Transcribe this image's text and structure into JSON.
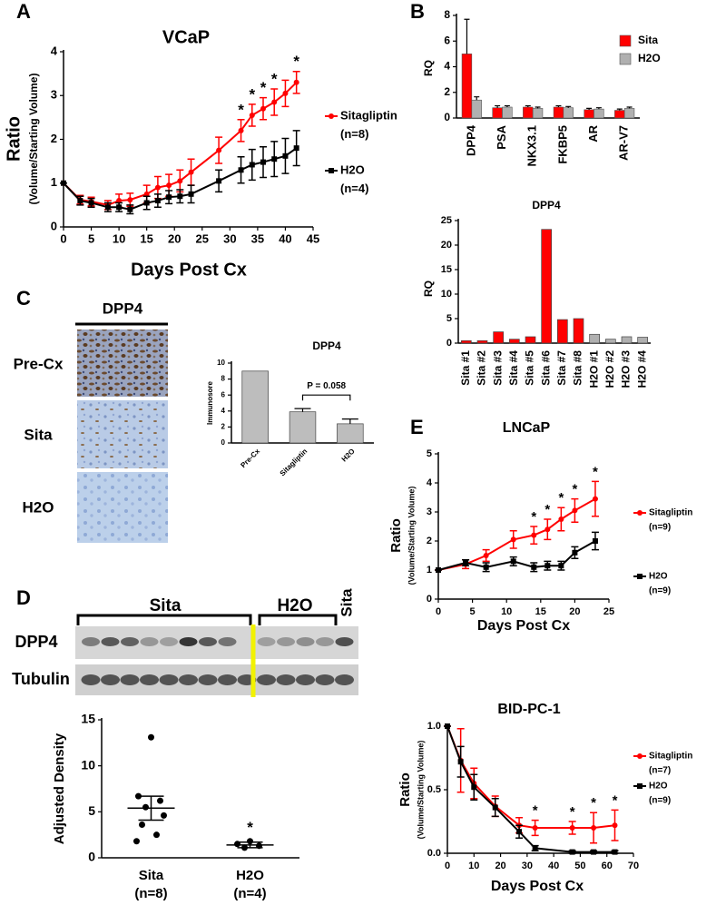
{
  "panel_labels": [
    "A",
    "B",
    "C",
    "D",
    "E"
  ],
  "ihc": {
    "title": "DPP4",
    "rows": [
      "Pre-Cx",
      "Sita",
      "H2O"
    ]
  },
  "blot": {
    "groups": [
      "Sita",
      "H2O"
    ],
    "lane_label": "Sita",
    "rows": [
      "DPP4",
      "Tubulin"
    ]
  },
  "chart_data": [
    {
      "type": "line",
      "title": "VCaP",
      "xlabel": "Days Post Cx",
      "ylabel": "Ratio",
      "ylabel_sub": "(Volume/Starting Volume)",
      "xlim": [
        0,
        45
      ],
      "xticks": [
        0,
        5,
        10,
        15,
        20,
        25,
        30,
        35,
        40,
        45
      ],
      "ylim": [
        0,
        4
      ],
      "yticks": [
        0,
        1,
        2,
        3,
        4
      ],
      "x": [
        0,
        3,
        5,
        8,
        10,
        12,
        15,
        17,
        19,
        21,
        23,
        28,
        32,
        34,
        36,
        38,
        40,
        42
      ],
      "series": [
        {
          "name": "Sitagliptin",
          "note": "(n=8)",
          "color": "#ff0000",
          "marker": "circle",
          "values": [
            1,
            0.62,
            0.58,
            0.5,
            0.6,
            0.62,
            0.75,
            0.9,
            0.95,
            1.05,
            1.25,
            1.75,
            2.2,
            2.55,
            2.7,
            2.85,
            3.05,
            3.3
          ],
          "errors": [
            0,
            0.1,
            0.1,
            0.1,
            0.15,
            0.15,
            0.2,
            0.25,
            0.25,
            0.25,
            0.3,
            0.3,
            0.25,
            0.25,
            0.25,
            0.3,
            0.3,
            0.25
          ]
        },
        {
          "name": "H2O",
          "note": "(n=4)",
          "color": "#000000",
          "marker": "square",
          "values": [
            1,
            0.6,
            0.55,
            0.45,
            0.45,
            0.4,
            0.55,
            0.6,
            0.68,
            0.7,
            0.75,
            1.05,
            1.3,
            1.42,
            1.48,
            1.55,
            1.62,
            1.8
          ],
          "errors": [
            0,
            0.1,
            0.1,
            0.1,
            0.1,
            0.1,
            0.15,
            0.15,
            0.15,
            0.15,
            0.2,
            0.25,
            0.3,
            0.35,
            0.35,
            0.4,
            0.4,
            0.4
          ]
        }
      ],
      "asterisks": {
        "text": "*",
        "x": [
          32,
          34,
          36,
          38,
          42
        ]
      }
    },
    {
      "type": "bar",
      "ylabel": "RQ",
      "categories": [
        "DPP4",
        "PSA",
        "NKX3.1",
        "FKBP5",
        "AR",
        "AR-V7"
      ],
      "ylim": [
        0,
        8
      ],
      "yticks": [
        0,
        2,
        4,
        6,
        8
      ],
      "series": [
        {
          "name": "Sita",
          "color": "#ff0000",
          "values": [
            5.0,
            0.8,
            0.85,
            0.85,
            0.65,
            0.6
          ],
          "errors": [
            2.7,
            0.15,
            0.1,
            0.1,
            0.1,
            0.1
          ]
        },
        {
          "name": "H2O",
          "color": "#b0b0b0",
          "values": [
            1.4,
            0.85,
            0.75,
            0.8,
            0.7,
            0.75
          ],
          "errors": [
            0.25,
            0.1,
            0.1,
            0.1,
            0.1,
            0.1
          ]
        }
      ]
    },
    {
      "type": "bar",
      "title": "DPP4",
      "ylabel": "RQ",
      "categories": [
        "Sita #1",
        "Sita #2",
        "Sita #3",
        "Sita #4",
        "Sita #5",
        "Sita #6",
        "Sita #7",
        "Sita #8",
        "H2O #1",
        "H2O #2",
        "H2O #3",
        "H2O #4"
      ],
      "values": [
        0.5,
        0.5,
        2.3,
        0.8,
        1.3,
        23.2,
        4.8,
        5.0,
        1.8,
        0.8,
        1.3,
        1.2
      ],
      "colors": [
        "#ff0000",
        "#ff0000",
        "#ff0000",
        "#ff0000",
        "#ff0000",
        "#ff0000",
        "#ff0000",
        "#ff0000",
        "#b0b0b0",
        "#b0b0b0",
        "#b0b0b0",
        "#b0b0b0"
      ],
      "ylim": [
        0,
        25
      ],
      "yticks": [
        0,
        5,
        10,
        15,
        20,
        25
      ]
    },
    {
      "type": "bar",
      "title": "DPP4",
      "ylabel": "Immunosore",
      "categories": [
        "Pre-Cx",
        "Sitagliptin",
        "H2O"
      ],
      "values": [
        9,
        3.9,
        2.4
      ],
      "errors": [
        null,
        0.4,
        0.6
      ],
      "color": "#bdbdbd",
      "ylim": [
        0,
        10
      ],
      "yticks": [
        0,
        2,
        4,
        6,
        8,
        10
      ],
      "annotation": "P = 0.058"
    },
    {
      "type": "dot",
      "ylabel": "Adjusted Density",
      "categories": [
        "Sita",
        "H2O"
      ],
      "category_notes": [
        "(n=8)",
        "(n=4)"
      ],
      "ylim": [
        0,
        15
      ],
      "yticks": [
        0,
        5,
        10,
        15
      ],
      "groups": [
        {
          "values": [
            13.1,
            6.7,
            6.2,
            5.5,
            4.6,
            3.6,
            2.5,
            1.8
          ],
          "mean": 5.4,
          "sem": 1.3
        },
        {
          "values": [
            1.8,
            1.5,
            1.3,
            1.1
          ],
          "mean": 1.4,
          "sem": 0.3
        }
      ],
      "asterisk": "*"
    },
    {
      "type": "line",
      "title": "LNCaP",
      "xlabel": "Days Post Cx",
      "ylabel": "Ratio",
      "ylabel_sub": "(Volume/Starting Volume)",
      "xlim": [
        0,
        25
      ],
      "xticks": [
        0,
        5,
        10,
        15,
        20,
        25
      ],
      "ylim": [
        0,
        5
      ],
      "yticks": [
        0,
        1,
        2,
        3,
        4,
        5
      ],
      "x": [
        0,
        4,
        7,
        11,
        14,
        16,
        18,
        20,
        23
      ],
      "series": [
        {
          "name": "Sitagliptin",
          "note": "(n=9)",
          "color": "#ff0000",
          "marker": "circle",
          "values": [
            1,
            1.2,
            1.5,
            2.05,
            2.2,
            2.4,
            2.75,
            3.05,
            3.45
          ],
          "errors": [
            0,
            0.15,
            0.2,
            0.3,
            0.3,
            0.35,
            0.4,
            0.4,
            0.6
          ]
        },
        {
          "name": "H2O",
          "note": "(n=9)",
          "color": "#000000",
          "marker": "square",
          "values": [
            1,
            1.25,
            1.1,
            1.3,
            1.1,
            1.15,
            1.15,
            1.6,
            2.0
          ],
          "errors": [
            0,
            0.1,
            0.15,
            0.15,
            0.15,
            0.15,
            0.15,
            0.2,
            0.3
          ]
        }
      ],
      "asterisks": {
        "text": "*",
        "x": [
          14,
          16,
          18,
          20,
          23
        ]
      }
    },
    {
      "type": "line",
      "title": "BID-PC-1",
      "xlabel": "Days Post Cx",
      "ylabel": "Ratio",
      "ylabel_sub": "(Volume/Starting Volume)",
      "xlim": [
        0,
        70
      ],
      "xticks": [
        0,
        10,
        20,
        30,
        40,
        50,
        60,
        70
      ],
      "ylim": [
        0,
        1
      ],
      "yticks": [
        {
          "value": 0,
          "label": "0.0"
        },
        0.5,
        {
          "value": 1,
          "label": "1.0"
        }
      ],
      "x": [
        0,
        5,
        10,
        18,
        27,
        33,
        47,
        55,
        63
      ],
      "series": [
        {
          "name": "Sitagliptin",
          "note": "(n=7)",
          "color": "#ff0000",
          "marker": "circle",
          "values": [
            1,
            0.73,
            0.55,
            0.37,
            0.22,
            0.2,
            0.2,
            0.2,
            0.22
          ],
          "errors": [
            0,
            0.25,
            0.12,
            0.08,
            0.06,
            0.06,
            0.05,
            0.12,
            0.12
          ]
        },
        {
          "name": "H2O",
          "note": "(n=9)",
          "color": "#000000",
          "marker": "square",
          "values": [
            1,
            0.72,
            0.52,
            0.36,
            0.17,
            0.04,
            0.01,
            0.01,
            0.01
          ],
          "errors": [
            0,
            0.12,
            0.1,
            0.07,
            0.05,
            0.02,
            0.01,
            0.01,
            0.01
          ]
        }
      ],
      "asterisks": {
        "text": "*",
        "x": [
          33,
          47,
          55,
          63
        ]
      }
    }
  ]
}
